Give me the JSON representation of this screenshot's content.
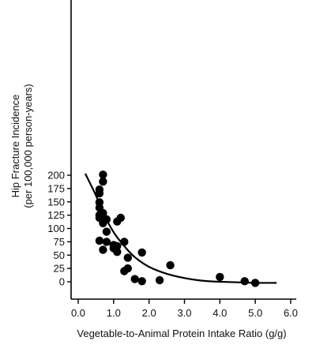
{
  "chart_data": {
    "type": "scatter",
    "title": "",
    "xlabel": "Vegetable-to-Animal Protein Intake Ratio (g/g)",
    "ylabel_line1": "Hip Fracture Incidence",
    "ylabel_line2": "(per 100,000 person-years)",
    "xlim": [
      -0.6,
      6.2
    ],
    "ylim": [
      -10,
      210
    ],
    "xticks": [
      0.0,
      1.0,
      2.0,
      3.0,
      4.0,
      5.0,
      6.0
    ],
    "xtick_labels": [
      "0.0",
      "1.0",
      "2.0",
      "3.0",
      "4.0",
      "5.0",
      "6.0"
    ],
    "yticks": [
      0,
      25,
      50,
      75,
      100,
      125,
      150,
      175,
      200
    ],
    "ytick_labels": [
      "0",
      "25",
      "50",
      "75",
      "100",
      "125",
      "150",
      "175",
      "200"
    ],
    "grid": false,
    "points": [
      {
        "x": 0.7,
        "y": 201
      },
      {
        "x": 0.7,
        "y": 188
      },
      {
        "x": 0.6,
        "y": 173
      },
      {
        "x": 0.6,
        "y": 166
      },
      {
        "x": 0.6,
        "y": 149
      },
      {
        "x": 0.6,
        "y": 139
      },
      {
        "x": 0.7,
        "y": 129
      },
      {
        "x": 0.6,
        "y": 125
      },
      {
        "x": 0.6,
        "y": 120
      },
      {
        "x": 0.7,
        "y": 122
      },
      {
        "x": 0.8,
        "y": 117
      },
      {
        "x": 0.7,
        "y": 110
      },
      {
        "x": 1.2,
        "y": 120
      },
      {
        "x": 1.1,
        "y": 113
      },
      {
        "x": 0.8,
        "y": 94
      },
      {
        "x": 0.6,
        "y": 77
      },
      {
        "x": 0.8,
        "y": 75
      },
      {
        "x": 1.0,
        "y": 69
      },
      {
        "x": 1.1,
        "y": 67
      },
      {
        "x": 1.0,
        "y": 63
      },
      {
        "x": 0.7,
        "y": 60
      },
      {
        "x": 1.1,
        "y": 56
      },
      {
        "x": 1.3,
        "y": 75
      },
      {
        "x": 1.4,
        "y": 45
      },
      {
        "x": 1.8,
        "y": 55
      },
      {
        "x": 2.6,
        "y": 31
      },
      {
        "x": 1.4,
        "y": 25
      },
      {
        "x": 1.3,
        "y": 20
      },
      {
        "x": 1.6,
        "y": 5
      },
      {
        "x": 1.8,
        "y": 1
      },
      {
        "x": 2.3,
        "y": 3
      },
      {
        "x": 4.0,
        "y": 9
      },
      {
        "x": 4.7,
        "y": 1
      },
      {
        "x": 5.0,
        "y": -2
      }
    ],
    "curve": {
      "type": "exponential-fit",
      "x_range": [
        0.2,
        5.6
      ],
      "ymax": 203,
      "points": [
        {
          "x": 0.2,
          "y": 203
        },
        {
          "x": 0.5,
          "y": 162
        },
        {
          "x": 0.7,
          "y": 130
        },
        {
          "x": 1.0,
          "y": 93
        },
        {
          "x": 1.3,
          "y": 67
        },
        {
          "x": 1.6,
          "y": 46
        },
        {
          "x": 2.0,
          "y": 28
        },
        {
          "x": 2.5,
          "y": 15
        },
        {
          "x": 3.0,
          "y": 7
        },
        {
          "x": 3.5,
          "y": 2
        },
        {
          "x": 4.0,
          "y": 0
        },
        {
          "x": 4.5,
          "y": -1
        },
        {
          "x": 5.0,
          "y": -2
        },
        {
          "x": 5.6,
          "y": -2
        }
      ]
    }
  }
}
